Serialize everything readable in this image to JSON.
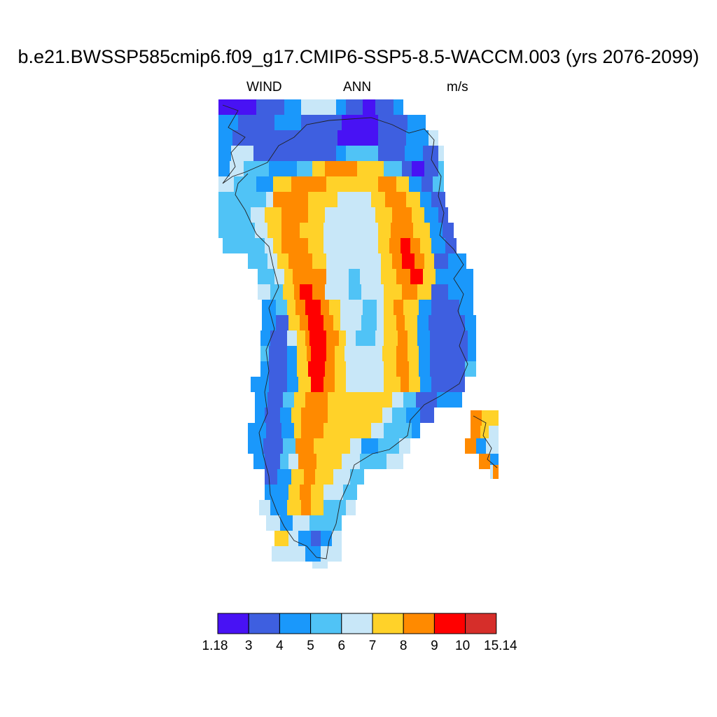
{
  "title": "b.e21.BWSSP585cmip6.f09_g17.CMIP6-SSP5-8.5-WACCM.003 (yrs 2076-2099)",
  "subtitle": {
    "variable": "WIND",
    "season": "ANN",
    "units": "m/s"
  },
  "colorbar": {
    "labels": [
      "1.18",
      "3",
      "4",
      "5",
      "6",
      "7",
      "8",
      "9",
      "10",
      "15.14"
    ],
    "colors": [
      "#4812f4",
      "#3e5fe0",
      "#1a98fb",
      "#50c3f6",
      "#c8e7f8",
      "#ffd229",
      "#ff8a00",
      "#ff0000",
      "#d62e2a"
    ]
  },
  "map": {
    "region": "Greenland",
    "field": "annual mean wind speed",
    "pattern": "high (8-10 m/s) ring around an interior ice-sheet minimum near 6-7 m/s; coastal cells 3-6 m/s"
  }
}
